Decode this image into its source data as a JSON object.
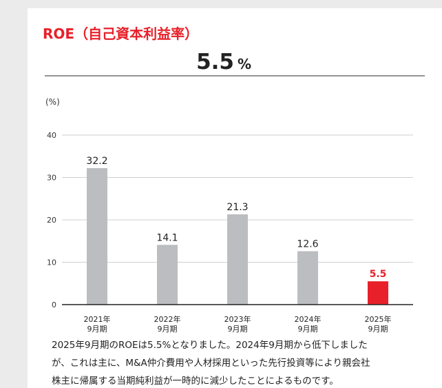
{
  "header": {
    "title": "ROE（自己資本利益率）",
    "value": 5.5,
    "unit": "%"
  },
  "chart_data": {
    "type": "bar",
    "ylabel": "(%)",
    "categories": [
      [
        "2021年",
        "9月期"
      ],
      [
        "2022年",
        "9月期"
      ],
      [
        "2023年",
        "9月期"
      ],
      [
        "2024年",
        "9月期"
      ],
      [
        "2025年",
        "9月期"
      ]
    ],
    "values": [
      32.2,
      14.1,
      21.3,
      12.6,
      5.5
    ],
    "colors": [
      "#bcbdc0",
      "#bcbdc0",
      "#bcbdc0",
      "#bcbdc0",
      "#e8202a"
    ],
    "highlight_color": "#e8202a",
    "ylim": [
      0,
      40
    ],
    "yticks": [
      0,
      10,
      20,
      30,
      40
    ],
    "grid": true
  },
  "note": {
    "lines": [
      "2025年9月期のROEは5.5%となりました。2024年9月期から低下しました",
      "が、これは主に、M&A仲介費用や人材採用といった先行投資等により親会社",
      "株主に帰属する当期純利益が一時的に減少したことによるものです。"
    ]
  }
}
